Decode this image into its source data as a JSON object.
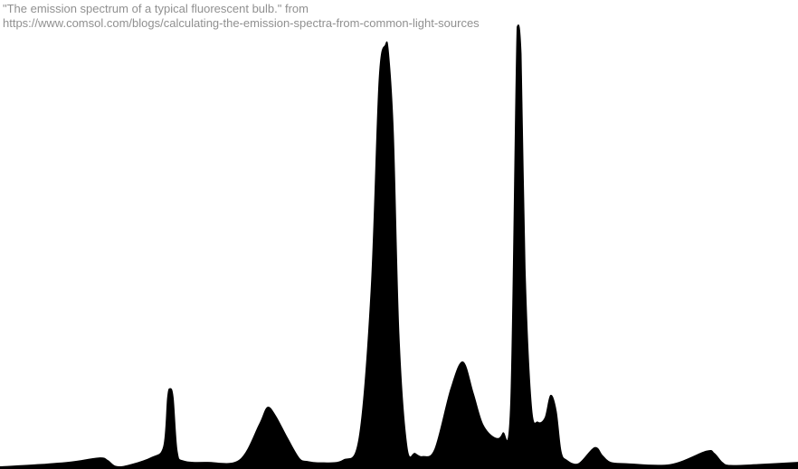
{
  "caption": {
    "line1": "\"The emission spectrum of a typical fluorescent bulb.\" from",
    "line2": "https://www.comsol.com/blogs/calculating-the-emission-spectra-from-common-light-sources"
  },
  "chart_data": {
    "type": "area",
    "title": "",
    "xlabel": "",
    "ylabel": "",
    "xlim": [
      0,
      100
    ],
    "ylim": [
      0,
      1
    ],
    "grid": false,
    "legend": "none",
    "fill_color": "#000000",
    "caption_color": "#909090",
    "x": [
      0,
      5,
      9,
      12.5,
      13.5,
      14.5,
      16,
      19,
      20.5,
      21,
      21.3,
      21.7,
      22.2,
      23,
      26,
      30,
      32.5,
      33.5,
      34.5,
      36,
      37.5,
      38.5,
      40,
      43,
      45,
      46.5,
      47.5,
      48.3,
      48.7,
      49.3,
      50,
      51,
      52,
      53,
      54.5,
      56.5,
      58,
      59.3,
      60.5,
      62,
      63,
      64,
      64.8,
      65.3,
      65.8,
      66.6,
      67.4,
      68.3,
      69,
      69.7,
      70.3,
      71,
      72.5,
      74.5,
      75.5,
      76.5,
      78.5,
      84,
      88.5,
      89.5,
      90.5,
      91.5,
      95,
      100
    ],
    "values": [
      0.005,
      0.01,
      0.016,
      0.025,
      0.019,
      0.006,
      0.008,
      0.026,
      0.05,
      0.16,
      0.18,
      0.16,
      0.04,
      0.018,
      0.015,
      0.02,
      0.1,
      0.138,
      0.12,
      0.07,
      0.024,
      0.017,
      0.014,
      0.02,
      0.07,
      0.4,
      0.87,
      0.95,
      0.93,
      0.75,
      0.3,
      0.05,
      0.035,
      0.028,
      0.045,
      0.18,
      0.24,
      0.17,
      0.1,
      0.07,
      0.08,
      0.15,
      0.99,
      0.93,
      0.45,
      0.14,
      0.105,
      0.115,
      0.165,
      0.13,
      0.04,
      0.02,
      0.012,
      0.048,
      0.03,
      0.015,
      0.012,
      0.01,
      0.04,
      0.035,
      0.015,
      0.008,
      0.01,
      0.015
    ]
  }
}
